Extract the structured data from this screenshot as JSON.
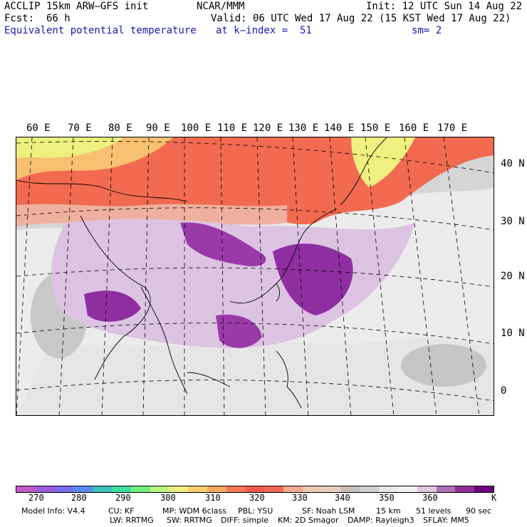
{
  "header": {
    "model": "ACCLIP 15km ARW–GFS init",
    "org": "NCAR/MMM",
    "init": "Init: 12 UTC Sun 14 Aug 22",
    "fcst_label": "Fcst:",
    "fcst_value": "66 h",
    "valid": "Valid: 06 UTC Wed 17 Aug 22 (15 KST Wed 17 Aug 22)",
    "field": "Equivalent potential temperature",
    "level": "at k–index =  51",
    "smooth": "sm= 2"
  },
  "map": {
    "lon_labels": [
      "60 E",
      "70 E",
      "80 E",
      "90 E",
      "100 E",
      "110 E",
      "120 E",
      "130 E",
      "140 E",
      "150 E",
      "160 E",
      "170 E"
    ],
    "lat_labels": [
      "40 N",
      "30 N",
      "20 N",
      "10 N",
      "0"
    ]
  },
  "colorbar": {
    "colors": [
      "#c45ac8",
      "#9c5ce0",
      "#7a6cf0",
      "#5a8cf0",
      "#3cc0c0",
      "#3ce0a0",
      "#70f080",
      "#b8f880",
      "#f0f080",
      "#f8d070",
      "#f8a860",
      "#f87858",
      "#f85850",
      "#f06858",
      "#f8a890",
      "#f0c8b0",
      "#e8d0c0",
      "#c8c0b8",
      "#d0d0d0",
      "#e8e8e8",
      "#f0f0f0",
      "#e0c8e0",
      "#b070b8",
      "#903098",
      "#700080"
    ],
    "ticks": [
      "270",
      "280",
      "290",
      "300",
      "310",
      "320",
      "330",
      "340",
      "350",
      "360",
      "K"
    ]
  },
  "footer": {
    "line1": [
      "Model Info: V4.4",
      "CU: KF",
      "MP: WDM 6class",
      "PBL: YSU",
      "SF: Noah LSM",
      "15 km",
      "51 levels",
      "90 sec"
    ],
    "line2": [
      "LW: RRTMG",
      "SW: RRTMG",
      "DIFF: simple",
      "KM: 2D Smagor",
      "DAMP: Rayleigh3",
      "SFLAY: MM5"
    ]
  }
}
